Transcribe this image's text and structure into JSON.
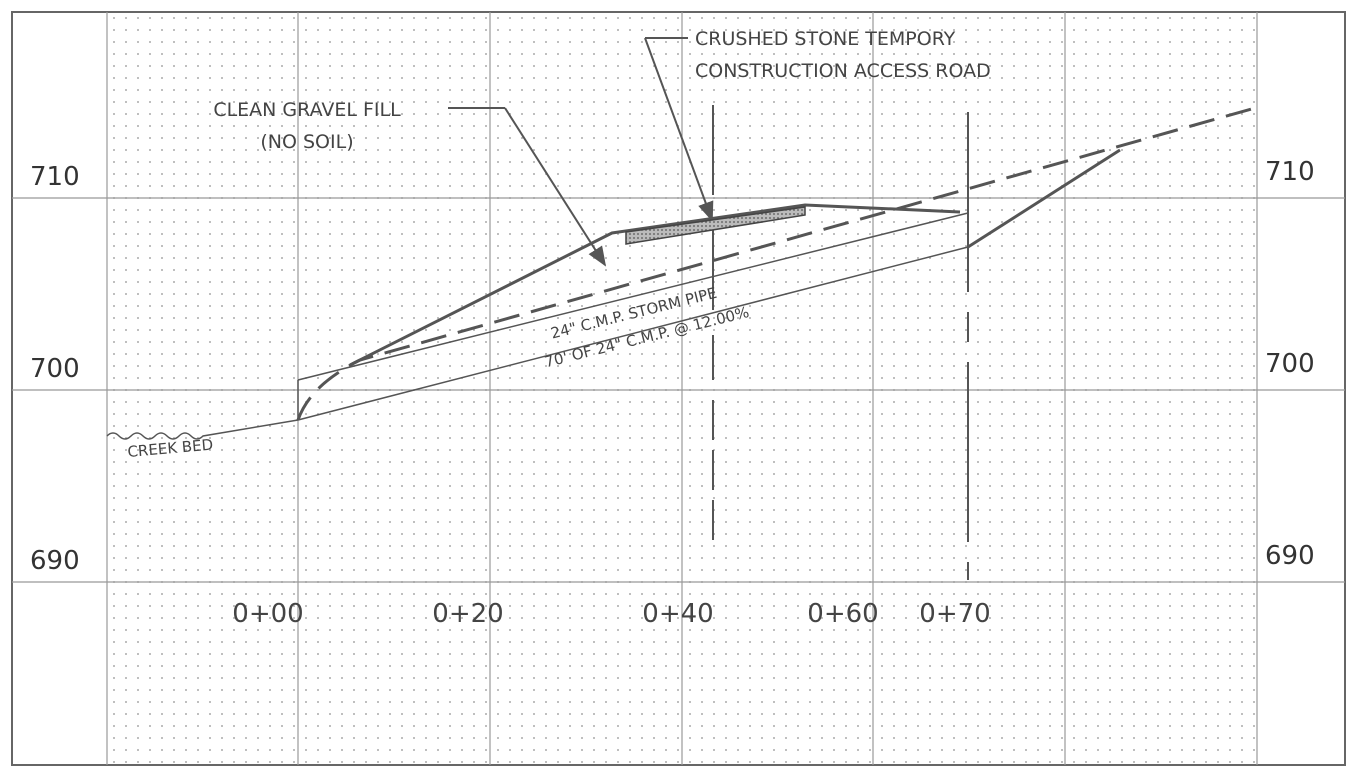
{
  "elevations": {
    "left": [
      "710",
      "700",
      "690"
    ],
    "right": [
      "710",
      "700",
      "690"
    ]
  },
  "stations": [
    "0+00",
    "0+20",
    "0+40",
    "0+60",
    "0+70"
  ],
  "annotations": {
    "road": [
      "CRUSHED STONE TEMPORY",
      "CONSTRUCTION ACCESS ROAD"
    ],
    "fill": [
      "CLEAN GRAVEL FILL",
      "(NO SOIL)"
    ],
    "pipe": "24\" C.M.P.  STORM  PIPE",
    "pipe_length": "70' OF 24\" C.M.P. @ 12.00%",
    "creek": "CREEK BED"
  }
}
